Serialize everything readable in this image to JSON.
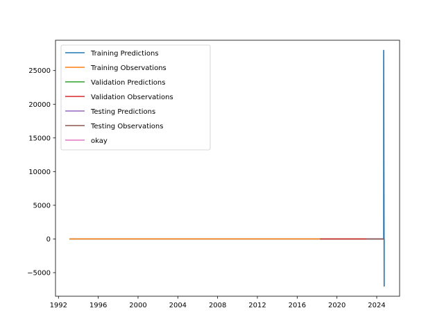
{
  "chart_data": {
    "type": "line",
    "title": "",
    "xlabel": "",
    "ylabel": "",
    "xlim": [
      1991.7,
      2026.3
    ],
    "ylim": [
      -8500,
      29500
    ],
    "x_ticks": [
      1992,
      1996,
      2000,
      2004,
      2008,
      2012,
      2016,
      2020,
      2024
    ],
    "y_ticks": [
      -5000,
      0,
      5000,
      10000,
      15000,
      20000,
      25000
    ],
    "y_tick_labels": [
      "−5000",
      "0",
      "5000",
      "10000",
      "15000",
      "20000",
      "25000"
    ],
    "grid": false,
    "legend_position": "upper-left",
    "series": [
      {
        "name": "Training Predictions",
        "color": "#1f77b4",
        "x": [
          1993.1,
          2018.3,
          2024.7,
          2024.7,
          2024.75,
          2024.75
        ],
        "y": [
          0,
          0,
          0,
          28000,
          -7000,
          0
        ]
      },
      {
        "name": "Training Observations",
        "color": "#ff7f0e",
        "x": [
          1993.1,
          2018.3
        ],
        "y": [
          0,
          0
        ]
      },
      {
        "name": "Validation Predictions",
        "color": "#2ca02c",
        "x": [
          2018.3,
          2023.0
        ],
        "y": [
          0,
          0
        ]
      },
      {
        "name": "Validation Observations",
        "color": "#d62728",
        "x": [
          2018.3,
          2023.0
        ],
        "y": [
          0,
          0
        ]
      },
      {
        "name": "Testing Predictions",
        "color": "#9467bd",
        "x": [
          2023.0,
          2024.7
        ],
        "y": [
          0,
          0
        ]
      },
      {
        "name": "Testing Observations",
        "color": "#8c564b",
        "x": [
          2023.0,
          2024.7
        ],
        "y": [
          0,
          0
        ]
      },
      {
        "name": "okay",
        "color": "#e377c2",
        "x": [],
        "y": []
      }
    ]
  }
}
